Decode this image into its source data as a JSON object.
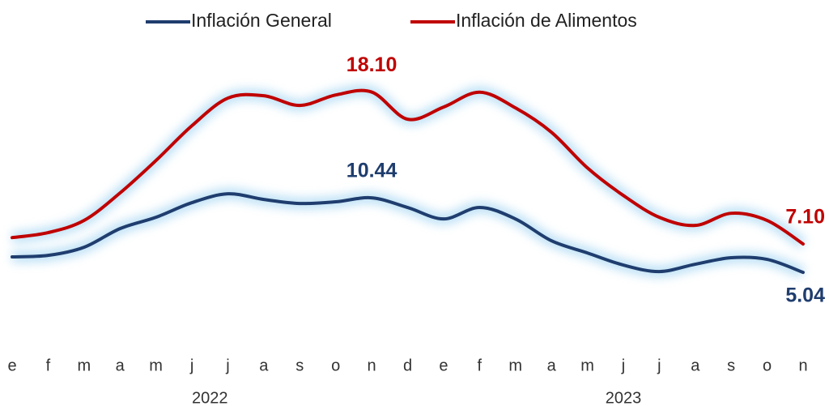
{
  "chart_data": {
    "type": "line",
    "categories": [
      "e",
      "f",
      "m",
      "a",
      "m",
      "j",
      "j",
      "a",
      "s",
      "o",
      "n",
      "d",
      "e",
      "f",
      "m",
      "a",
      "m",
      "j",
      "j",
      "a",
      "s",
      "o",
      "n"
    ],
    "years": [
      "2022",
      "2023"
    ],
    "series": [
      {
        "name": "Inflación General",
        "color": "#1f3d6e",
        "values": [
          6.16,
          6.27,
          6.86,
          8.21,
          9.03,
          10.09,
          10.73,
          10.32,
          10.03,
          10.15,
          10.44,
          9.74,
          8.91,
          9.74,
          8.91,
          7.33,
          6.45,
          5.57,
          5.1,
          5.63,
          6.1,
          5.98,
          5.04
        ],
        "value_labels": [
          null,
          null,
          null,
          null,
          null,
          null,
          null,
          null,
          null,
          null,
          "10.44",
          null,
          null,
          null,
          null,
          null,
          null,
          null,
          null,
          null,
          null,
          null,
          "5.04"
        ]
      },
      {
        "name": "Inflación de Alimentos",
        "color": "#c00000",
        "values": [
          7.56,
          7.92,
          8.8,
          10.79,
          13.14,
          15.66,
          17.66,
          17.83,
          17.13,
          17.89,
          18.1,
          16.13,
          17.01,
          18.09,
          16.95,
          15.19,
          12.61,
          10.61,
          9.03,
          8.44,
          9.32,
          8.8,
          7.1
        ],
        "value_labels": [
          null,
          null,
          null,
          null,
          null,
          null,
          null,
          null,
          null,
          null,
          "18.10",
          null,
          null,
          null,
          null,
          null,
          null,
          null,
          null,
          null,
          null,
          null,
          "7.10"
        ]
      }
    ]
  }
}
